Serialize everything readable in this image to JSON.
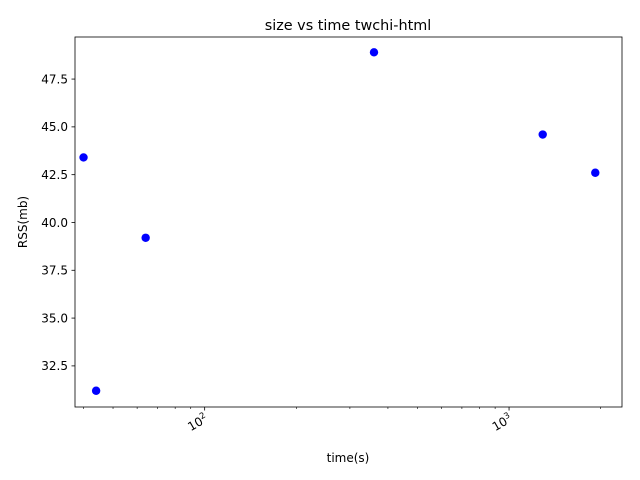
{
  "chart_data": {
    "type": "scatter",
    "title": "size vs time twchi-html",
    "xlabel": "time(s)",
    "ylabel": "RSS(mb)",
    "x_scale": "log",
    "xlim": [
      37.5,
      2350
    ],
    "ylim": [
      30.35,
      49.7
    ],
    "x_ticks": [
      {
        "value": 100,
        "base": "10",
        "exp": "2"
      },
      {
        "value": 1000,
        "base": "10",
        "exp": "3"
      }
    ],
    "y_ticks": [
      {
        "value": 32.5,
        "label": "32.5"
      },
      {
        "value": 35.0,
        "label": "35.0"
      },
      {
        "value": 37.5,
        "label": "37.5"
      },
      {
        "value": 40.0,
        "label": "40.0"
      },
      {
        "value": 42.5,
        "label": "42.5"
      },
      {
        "value": 45.0,
        "label": "45.0"
      },
      {
        "value": 47.5,
        "label": "47.5"
      }
    ],
    "grid": false,
    "legend": "none",
    "marker_color": "#0000ff",
    "points": [
      {
        "x": 40,
        "y": 43.4
      },
      {
        "x": 44,
        "y": 31.2
      },
      {
        "x": 64,
        "y": 39.2
      },
      {
        "x": 360,
        "y": 48.9
      },
      {
        "x": 1290,
        "y": 44.6
      },
      {
        "x": 1920,
        "y": 42.6
      }
    ]
  }
}
